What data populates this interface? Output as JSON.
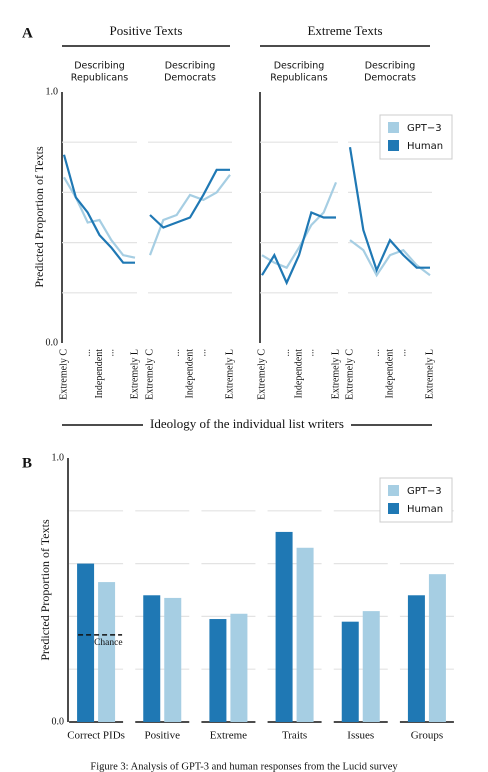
{
  "chart_data": [
    {
      "type": "line",
      "panel_label": "A",
      "ylabel": "Predicted Proportion of Texts",
      "xlabel": "Ideology of the individual list writers",
      "ylim": [
        0,
        1
      ],
      "yticks": [
        {
          "value": 0,
          "label": "0.0"
        },
        {
          "value": 1,
          "label": "1.0"
        }
      ],
      "gridlines": [
        0.2,
        0.4,
        0.6,
        0.8
      ],
      "categories": [
        "Extremely C",
        null,
        "...",
        "Independent",
        "...",
        null,
        "Extremely L"
      ],
      "series": [
        {
          "name": "GPT−3",
          "color": "#a6cee3"
        },
        {
          "name": "Human",
          "color": "#1f78b4"
        }
      ],
      "legend": "upper right",
      "groups": [
        {
          "title": "Positive Texts",
          "panels": [
            {
              "subtitle": [
                "Describing",
                "Republicans"
              ],
              "values": [
                [
                  0.66,
                  0.58,
                  0.48,
                  0.49,
                  0.41,
                  0.35,
                  0.34
                ],
                [
                  0.75,
                  0.58,
                  0.52,
                  0.43,
                  0.38,
                  0.32,
                  0.32
                ]
              ]
            },
            {
              "subtitle": [
                "Describing",
                "Democrats"
              ],
              "values": [
                [
                  0.35,
                  0.49,
                  0.51,
                  0.59,
                  0.57,
                  0.6,
                  0.67
                ],
                [
                  0.51,
                  0.46,
                  0.48,
                  0.5,
                  0.59,
                  0.69,
                  0.69
                ]
              ]
            }
          ]
        },
        {
          "title": "Extreme Texts",
          "panels": [
            {
              "subtitle": [
                "Describing",
                "Republicans"
              ],
              "values": [
                [
                  0.35,
                  0.32,
                  0.3,
                  0.38,
                  0.47,
                  0.52,
                  0.64
                ],
                [
                  0.27,
                  0.35,
                  0.24,
                  0.35,
                  0.52,
                  0.5,
                  0.5
                ]
              ]
            },
            {
              "subtitle": [
                "Describing",
                "Democrats"
              ],
              "values": [
                [
                  0.41,
                  0.37,
                  0.27,
                  0.35,
                  0.37,
                  0.31,
                  0.27
                ],
                [
                  0.78,
                  0.45,
                  0.29,
                  0.41,
                  0.35,
                  0.3,
                  0.3
                ]
              ]
            }
          ]
        }
      ]
    },
    {
      "type": "bar",
      "panel_label": "B",
      "ylabel": "Predicted Proportion of Texts",
      "ylim": [
        0,
        1
      ],
      "yticks": [
        {
          "value": 0,
          "label": "0.0"
        },
        {
          "value": 1,
          "label": "1.0"
        }
      ],
      "gridlines": [
        0.2,
        0.4,
        0.6,
        0.8
      ],
      "categories": [
        "Correct PIDs",
        "Positive",
        "Extreme",
        "Traits",
        "Issues",
        "Groups"
      ],
      "series": [
        {
          "name": "GPT−3",
          "color": "#a6cee3",
          "values": [
            0.53,
            0.47,
            0.41,
            0.66,
            0.42,
            0.56
          ]
        },
        {
          "name": "Human",
          "color": "#1f78b4",
          "values": [
            0.6,
            0.48,
            0.39,
            0.72,
            0.38,
            0.48
          ]
        }
      ],
      "legend": "upper right",
      "reference_line": {
        "value": 0.33,
        "label": "Chance"
      }
    }
  ],
  "caption": "Figure 3: Analysis of GPT-3 and human responses from the Lucid survey"
}
